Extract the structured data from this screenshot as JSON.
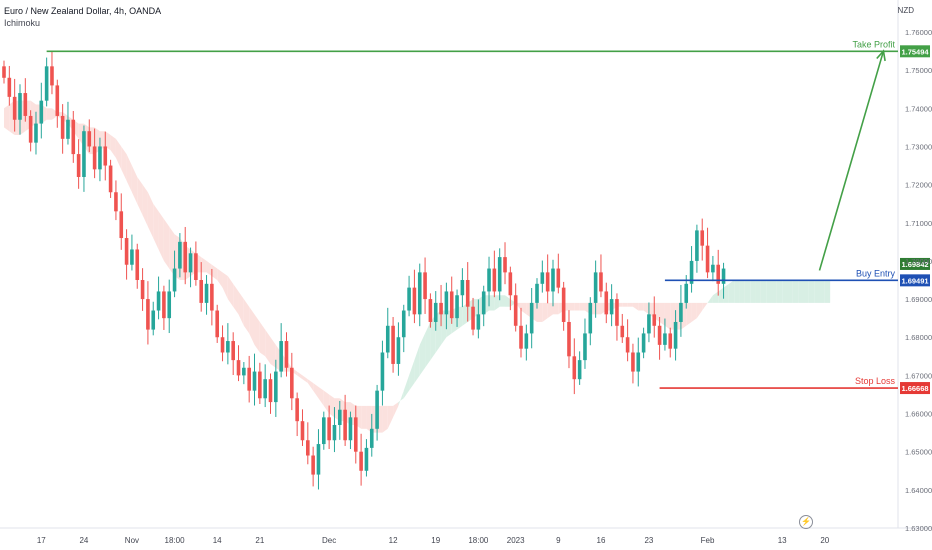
{
  "header": {
    "title": "Euro / New Zealand Dollar, 4h, OANDA",
    "indicator": "Ichimoku",
    "currency": "NZD"
  },
  "colors": {
    "bull": "#26a69a",
    "bear": "#ef5350",
    "cloud_bull": "#d8efe4",
    "cloud_bear": "#fbe1de",
    "take_profit": "#43a047",
    "buy_entry": "#1e50b4",
    "stop_loss": "#e53935",
    "current_price": "#2e7d32"
  },
  "chart_data": {
    "type": "candlestick",
    "instrument": "Euro / New Zealand Dollar",
    "timeframe": "4h",
    "broker": "OANDA",
    "indicator": "Ichimoku",
    "y_range": [
      1.63,
      1.765
    ],
    "y_ticks": [
      {
        "value": 1.76,
        "label": "1.76000"
      },
      {
        "value": 1.75,
        "label": "1.75000"
      },
      {
        "value": 1.74,
        "label": "1.74000"
      },
      {
        "value": 1.73,
        "label": "1.73000"
      },
      {
        "value": 1.72,
        "label": "1.72000"
      },
      {
        "value": 1.71,
        "label": "1.71000"
      },
      {
        "value": 1.7,
        "label": "1.70000"
      },
      {
        "value": 1.69,
        "label": "1.69000"
      },
      {
        "value": 1.68,
        "label": "1.68000"
      },
      {
        "value": 1.67,
        "label": "1.67000"
      },
      {
        "value": 1.66,
        "label": "1.66000"
      },
      {
        "value": 1.65,
        "label": "1.65000"
      },
      {
        "value": 1.64,
        "label": "1.64000"
      },
      {
        "value": 1.63,
        "label": "1.63000"
      }
    ],
    "x_ticks": [
      {
        "label": "17",
        "i": 7
      },
      {
        "label": "24",
        "i": 15
      },
      {
        "label": "Nov",
        "i": 24
      },
      {
        "label": "18:00",
        "i": 32
      },
      {
        "label": "14",
        "i": 40
      },
      {
        "label": "21",
        "i": 48
      },
      {
        "label": "Dec",
        "i": 61
      },
      {
        "label": "12",
        "i": 73
      },
      {
        "label": "19",
        "i": 81
      },
      {
        "label": "18:00",
        "i": 89
      },
      {
        "label": "2023",
        "i": 96
      },
      {
        "label": "9",
        "i": 104
      },
      {
        "label": "16",
        "i": 112
      },
      {
        "label": "23",
        "i": 121
      },
      {
        "label": "Feb",
        "i": 132
      },
      {
        "label": "13",
        "i": 146
      },
      {
        "label": "20",
        "i": 154
      }
    ],
    "closes": [
      1.748,
      1.743,
      1.737,
      1.744,
      1.738,
      1.731,
      1.736,
      1.742,
      1.751,
      1.746,
      1.738,
      1.732,
      1.737,
      1.728,
      1.722,
      1.734,
      1.73,
      1.724,
      1.73,
      1.725,
      1.718,
      1.713,
      1.706,
      1.699,
      1.703,
      1.695,
      1.69,
      1.682,
      1.687,
      1.692,
      1.685,
      1.692,
      1.698,
      1.705,
      1.697,
      1.702,
      1.695,
      1.689,
      1.694,
      1.687,
      1.68,
      1.676,
      1.679,
      1.674,
      1.67,
      1.672,
      1.666,
      1.671,
      1.664,
      1.669,
      1.663,
      1.671,
      1.679,
      1.672,
      1.664,
      1.658,
      1.653,
      1.649,
      1.644,
      1.652,
      1.659,
      1.653,
      1.657,
      1.661,
      1.653,
      1.659,
      1.65,
      1.645,
      1.651,
      1.656,
      1.666,
      1.676,
      1.683,
      1.673,
      1.68,
      1.687,
      1.693,
      1.686,
      1.697,
      1.69,
      1.684,
      1.689,
      1.686,
      1.692,
      1.685,
      1.691,
      1.695,
      1.688,
      1.682,
      1.686,
      1.692,
      1.698,
      1.692,
      1.701,
      1.697,
      1.691,
      1.683,
      1.677,
      1.681,
      1.689,
      1.694,
      1.697,
      1.692,
      1.698,
      1.693,
      1.684,
      1.675,
      1.669,
      1.674,
      1.681,
      1.689,
      1.697,
      1.692,
      1.686,
      1.69,
      1.683,
      1.68,
      1.676,
      1.671,
      1.676,
      1.681,
      1.686,
      1.683,
      1.678,
      1.681,
      1.677,
      1.684,
      1.689,
      1.694,
      1.7,
      1.708,
      1.704,
      1.697,
      1.699,
      1.694,
      1.698
    ],
    "ichimoku_cloud": {
      "span_a": [
        1.735,
        1.734,
        1.733,
        1.733,
        1.734,
        1.735,
        1.736,
        1.736,
        1.737,
        1.737,
        1.738,
        1.737,
        1.736,
        1.734,
        1.732,
        1.73,
        1.728,
        1.728,
        1.729,
        1.73,
        1.729,
        1.727,
        1.724,
        1.721,
        1.718,
        1.715,
        1.712,
        1.709,
        1.706,
        1.703,
        1.7,
        1.698,
        1.696,
        1.695,
        1.695,
        1.696,
        1.697,
        1.697,
        1.697,
        1.696,
        1.695,
        1.693,
        1.69,
        1.688,
        1.686,
        1.683,
        1.681,
        1.678,
        1.676,
        1.675,
        1.673,
        1.672,
        1.671,
        1.671,
        1.671,
        1.67,
        1.669,
        1.668,
        1.666,
        1.664,
        1.662,
        1.66,
        1.659,
        1.658,
        1.658,
        1.657,
        1.657,
        1.656,
        1.656,
        1.655,
        1.655,
        1.655,
        1.656,
        1.659,
        1.662,
        1.666,
        1.67,
        1.674,
        1.678,
        1.681,
        1.684,
        1.686,
        1.687,
        1.687,
        1.687,
        1.688,
        1.688,
        1.689,
        1.69,
        1.69,
        1.691,
        1.691,
        1.691,
        1.691,
        1.691,
        1.69,
        1.689,
        1.687,
        1.686,
        1.685,
        1.684,
        1.684,
        1.685,
        1.686,
        1.686,
        1.687,
        1.687,
        1.687,
        1.687,
        1.687,
        1.686,
        1.686,
        1.686,
        1.687,
        1.687,
        1.688,
        1.688,
        1.688,
        1.688,
        1.687,
        1.687,
        1.686,
        1.685,
        1.684,
        1.683,
        1.682,
        1.682,
        1.682,
        1.683,
        1.684,
        1.685,
        1.687,
        1.689,
        1.691,
        1.692,
        1.693,
        1.694,
        1.695,
        1.695,
        1.695,
        1.695,
        1.695,
        1.695,
        1.695,
        1.695,
        1.695,
        1.695,
        1.695,
        1.695,
        1.695,
        1.695,
        1.695,
        1.695,
        1.695,
        1.695,
        1.695
      ],
      "span_b": [
        1.74,
        1.741,
        1.742,
        1.742,
        1.742,
        1.742,
        1.741,
        1.741,
        1.74,
        1.74,
        1.739,
        1.739,
        1.738,
        1.737,
        1.736,
        1.736,
        1.735,
        1.735,
        1.734,
        1.734,
        1.733,
        1.732,
        1.73,
        1.728,
        1.725,
        1.722,
        1.72,
        1.718,
        1.715,
        1.713,
        1.711,
        1.709,
        1.707,
        1.706,
        1.704,
        1.703,
        1.702,
        1.701,
        1.7,
        1.699,
        1.698,
        1.697,
        1.696,
        1.694,
        1.692,
        1.69,
        1.688,
        1.686,
        1.684,
        1.682,
        1.68,
        1.678,
        1.676,
        1.674,
        1.672,
        1.671,
        1.67,
        1.669,
        1.668,
        1.667,
        1.666,
        1.665,
        1.664,
        1.664,
        1.663,
        1.663,
        1.662,
        1.662,
        1.662,
        1.662,
        1.662,
        1.662,
        1.662,
        1.662,
        1.663,
        1.664,
        1.666,
        1.668,
        1.67,
        1.672,
        1.674,
        1.676,
        1.678,
        1.68,
        1.681,
        1.682,
        1.683,
        1.684,
        1.685,
        1.686,
        1.686,
        1.687,
        1.687,
        1.688,
        1.688,
        1.688,
        1.689,
        1.689,
        1.689,
        1.689,
        1.689,
        1.689,
        1.689,
        1.689,
        1.689,
        1.689,
        1.689,
        1.689,
        1.689,
        1.689,
        1.689,
        1.689,
        1.689,
        1.689,
        1.689,
        1.689,
        1.689,
        1.689,
        1.689,
        1.689,
        1.689,
        1.689,
        1.689,
        1.689,
        1.689,
        1.689,
        1.689,
        1.689,
        1.689,
        1.689,
        1.689,
        1.689,
        1.689,
        1.689,
        1.689,
        1.689,
        1.689,
        1.689,
        1.689,
        1.689,
        1.689,
        1.689,
        1.689,
        1.689,
        1.689,
        1.689,
        1.689,
        1.689,
        1.689,
        1.689,
        1.689,
        1.689,
        1.689,
        1.689,
        1.689,
        1.689
      ]
    },
    "levels": [
      {
        "name": "Take Profit",
        "value": 1.75494,
        "label": "1.75494",
        "start_i": 8
      },
      {
        "name": "Buy Entry",
        "value": 1.69491,
        "label": "1.69491",
        "start_i": 124
      },
      {
        "name": "Stop Loss",
        "value": 1.66668,
        "label": "1.66668",
        "start_i": 123
      }
    ],
    "current_price": {
      "value": 1.69842,
      "label": "1.69842"
    },
    "projection_arrow": {
      "from": {
        "i": 153,
        "value": 1.6975
      },
      "to": {
        "i": 165,
        "value": 1.755
      }
    }
  }
}
